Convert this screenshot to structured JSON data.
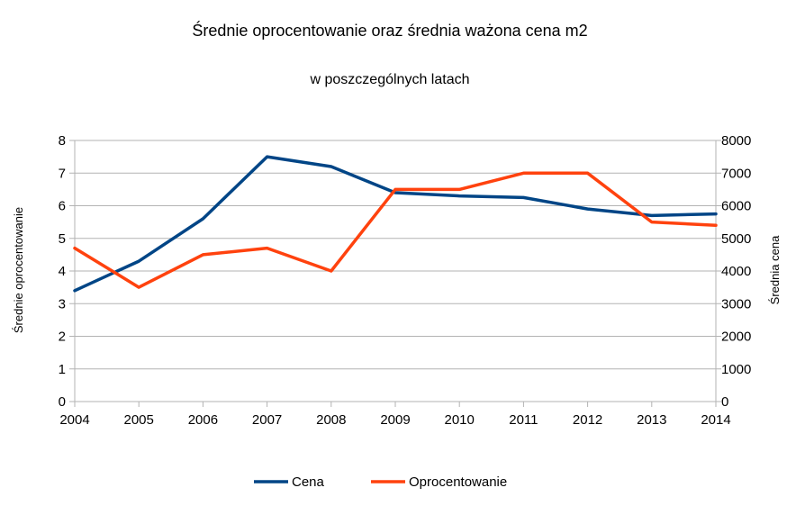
{
  "chart_data": {
    "type": "line",
    "title": "Średnie oprocentowanie oraz średnia ważona cena m2",
    "subtitle": "w poszczególnych latach",
    "x": [
      "2004",
      "2005",
      "2006",
      "2007",
      "2008",
      "2009",
      "2010",
      "2011",
      "2012",
      "2013",
      "2014"
    ],
    "ylabel_left": "Średnie oprocentowanie",
    "ylabel_right": "Średnia cena",
    "ylim_left": [
      0,
      8
    ],
    "ylim_right": [
      0,
      8000
    ],
    "yticks_left": [
      "0",
      "1",
      "2",
      "3",
      "4",
      "5",
      "6",
      "7",
      "8"
    ],
    "yticks_right": [
      "0",
      "1000",
      "2000",
      "3000",
      "4000",
      "5000",
      "6000",
      "7000",
      "8000"
    ],
    "grid": true,
    "legend_position": "bottom",
    "series": [
      {
        "name": "Cena",
        "axis": "right",
        "color": "#004586",
        "values": [
          3400,
          4300,
          5600,
          7500,
          7200,
          6400,
          6300,
          6250,
          5900,
          5700,
          5750
        ]
      },
      {
        "name": "Oprocentowanie",
        "axis": "left",
        "color": "#ff420e",
        "values": [
          4.7,
          3.5,
          4.5,
          4.7,
          4.0,
          6.5,
          6.5,
          7.0,
          7.0,
          5.5,
          5.4
        ]
      }
    ]
  }
}
